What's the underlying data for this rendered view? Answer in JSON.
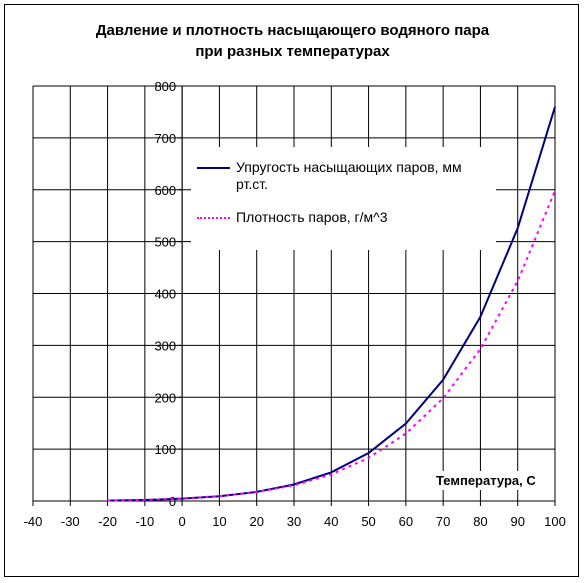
{
  "chart_data": {
    "type": "line",
    "title_line1": "Давление и плотность насыщающего водяного пара",
    "title_line2": "при разных температурах",
    "xlabel": "Температура, С",
    "ylabel": "",
    "xlim": [
      -40,
      100
    ],
    "ylim": [
      0,
      800
    ],
    "x_ticks": [
      -40,
      -30,
      -20,
      -10,
      0,
      10,
      20,
      30,
      40,
      50,
      60,
      70,
      80,
      90,
      100
    ],
    "y_ticks": [
      0,
      100,
      200,
      300,
      400,
      500,
      600,
      700,
      800
    ],
    "grid": true,
    "legend_position": "center-right",
    "x": [
      -20,
      -10,
      0,
      10,
      20,
      30,
      40,
      50,
      60,
      70,
      80,
      90,
      100
    ],
    "series": [
      {
        "name": "Упругость насыщающих паров, мм рт.ст.",
        "color": "#000080",
        "style": "solid",
        "values": [
          0.77,
          1.95,
          4.58,
          9.21,
          17.5,
          31.8,
          55.3,
          92.5,
          149.4,
          233.7,
          355.1,
          525.8,
          760.0
        ]
      },
      {
        "name": "Плотность паров, г/м^3",
        "color": "#ff00ff",
        "style": "dotted",
        "values": [
          0.88,
          2.14,
          4.84,
          9.4,
          17.3,
          30.3,
          51.2,
          83.0,
          130.0,
          198.0,
          293.0,
          424.0,
          598.0
        ]
      }
    ]
  }
}
